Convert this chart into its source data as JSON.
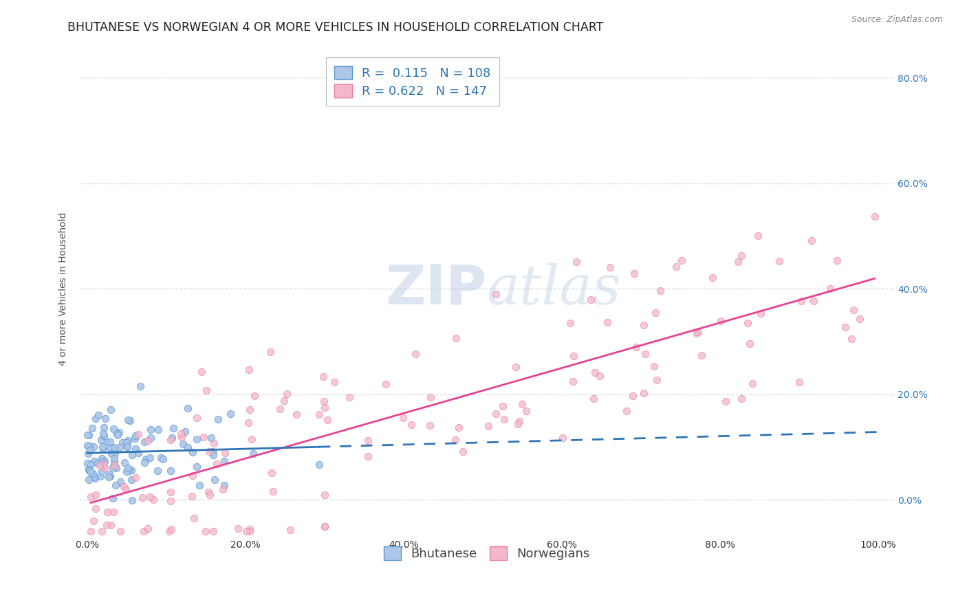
{
  "title": "BHUTANESE VS NORWEGIAN 4 OR MORE VEHICLES IN HOUSEHOLD CORRELATION CHART",
  "source": "Source: ZipAtlas.com",
  "ylabel": "4 or more Vehicles in Household",
  "xlim": [
    -0.01,
    1.02
  ],
  "ylim": [
    -0.07,
    0.87
  ],
  "xticks": [
    0.0,
    0.2,
    0.4,
    0.6,
    0.8,
    1.0
  ],
  "yticks": [
    0.0,
    0.2,
    0.4,
    0.6,
    0.8
  ],
  "bhutanese_R": 0.115,
  "bhutanese_N": 108,
  "norwegian_R": 0.622,
  "norwegian_N": 147,
  "bhutanese_color": "#aec6e8",
  "bhutanese_edge_color": "#5b9bd5",
  "bhutanese_line_color": "#2e75b6",
  "norwegian_color": "#f4b8cb",
  "norwegian_edge_color": "#e87da0",
  "norwegian_line_color": "#e84393",
  "legend_text_color": "#2e75b6",
  "tick_color": "#2e75b6",
  "background_color": "#ffffff",
  "grid_color": "#d0d8e8",
  "title_fontsize": 12.5,
  "axis_fontsize": 10,
  "tick_fontsize": 10,
  "legend_fontsize": 13,
  "source_fontsize": 9
}
